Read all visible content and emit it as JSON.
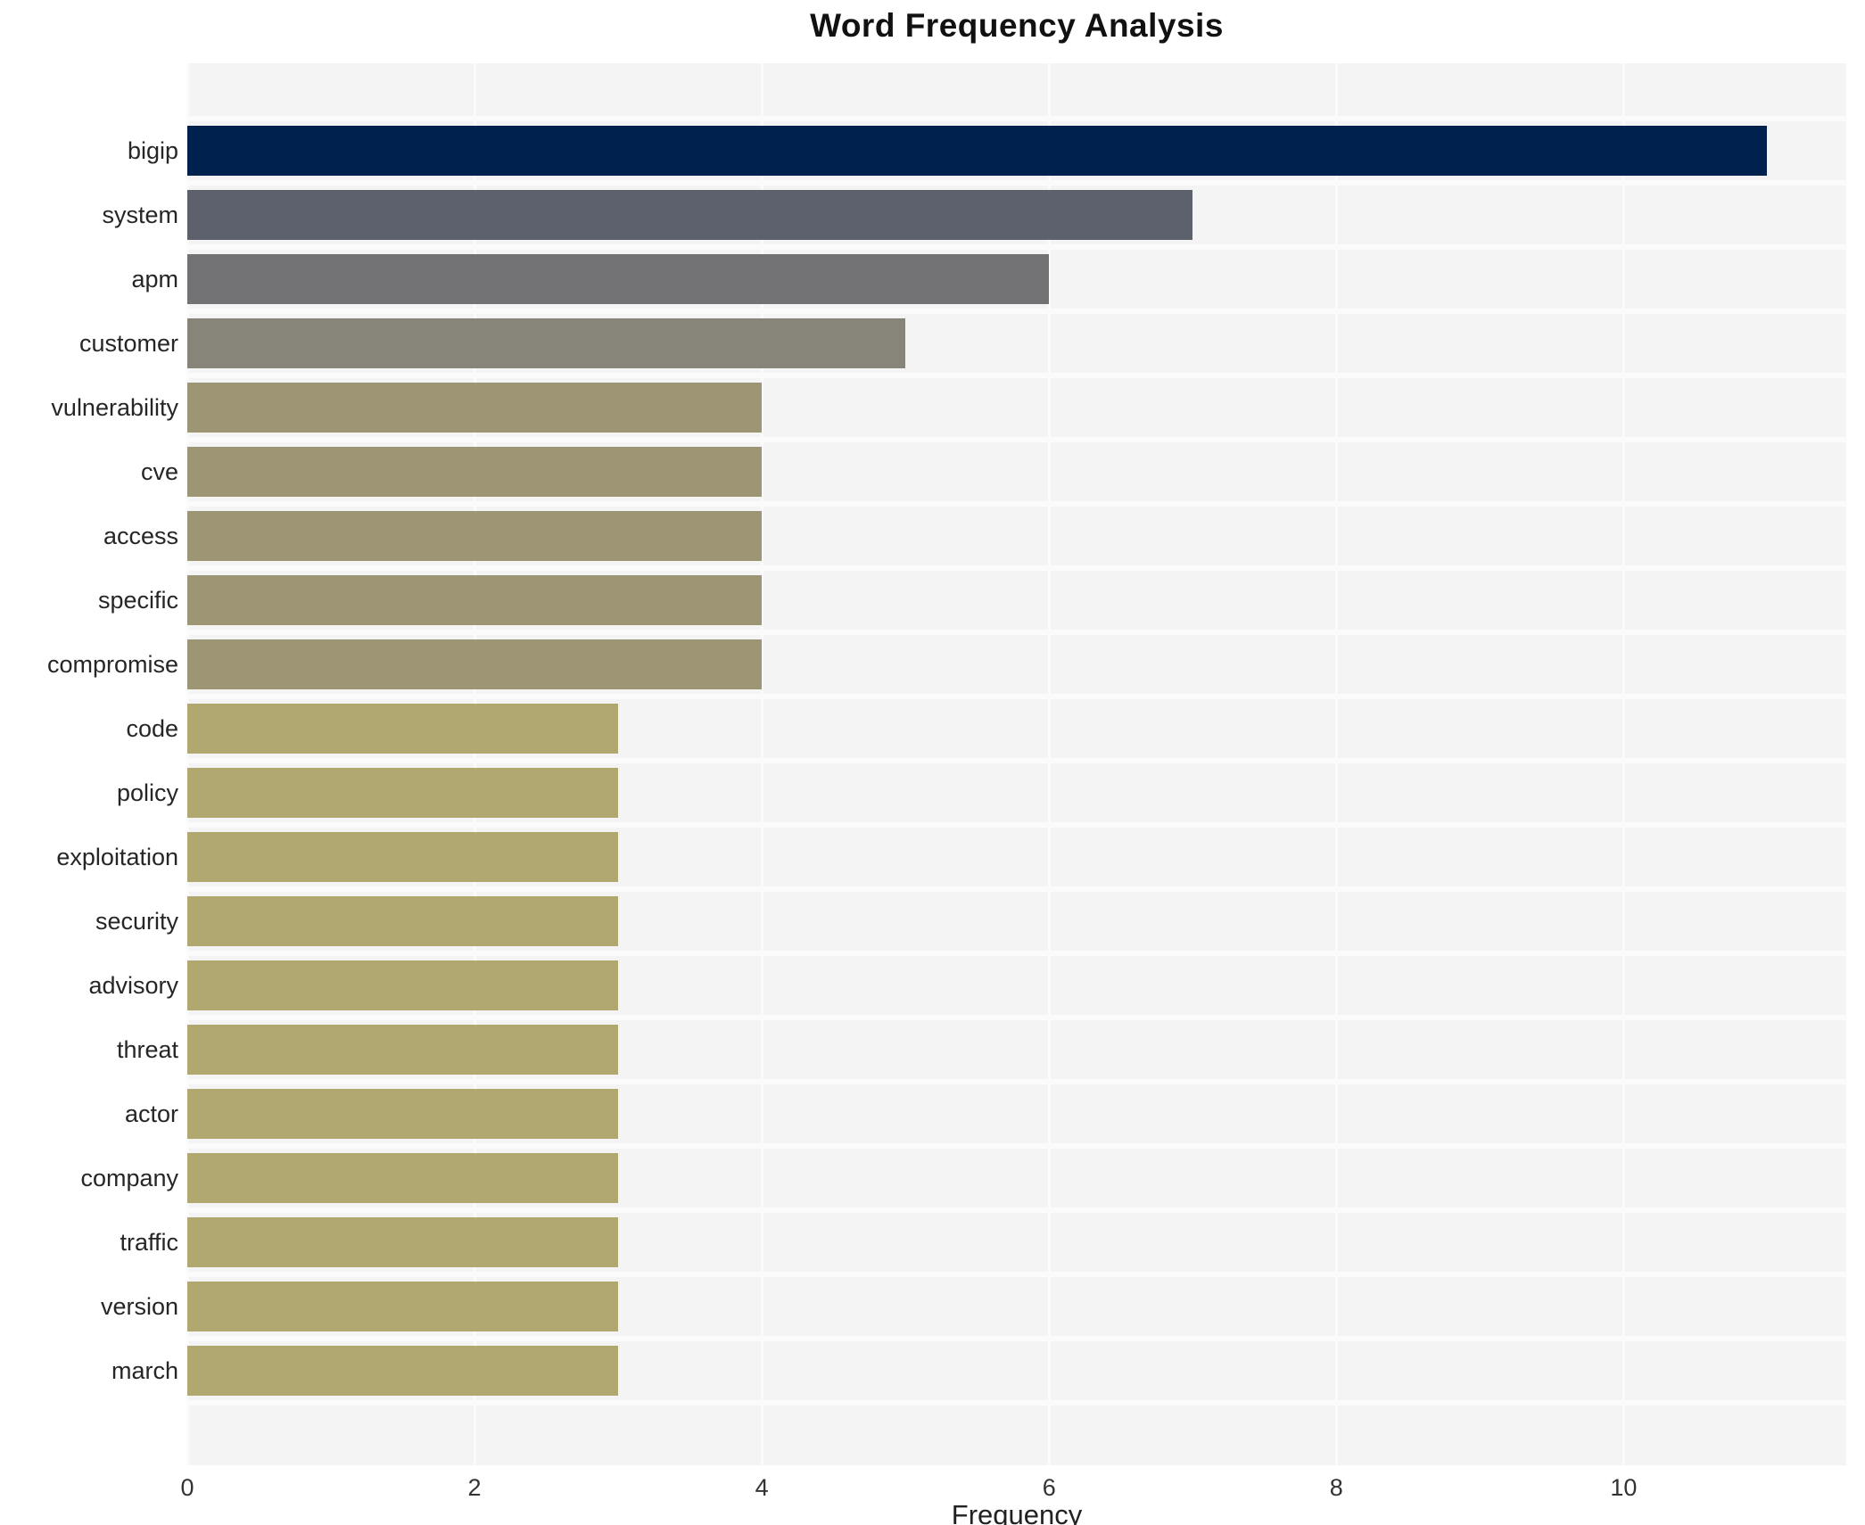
{
  "chart_data": {
    "type": "bar",
    "orientation": "horizontal",
    "title": "Word Frequency Analysis",
    "xlabel": "Frequency",
    "ylabel": "",
    "categories": [
      "bigip",
      "system",
      "apm",
      "customer",
      "vulnerability",
      "cve",
      "access",
      "specific",
      "compromise",
      "code",
      "policy",
      "exploitation",
      "security",
      "advisory",
      "threat",
      "actor",
      "company",
      "traffic",
      "version",
      "march"
    ],
    "values": [
      11,
      7,
      6,
      5,
      4,
      4,
      4,
      4,
      4,
      3,
      3,
      3,
      3,
      3,
      3,
      3,
      3,
      3,
      3,
      3
    ],
    "bar_colors": [
      "#00204d",
      "#5d606d",
      "#727275",
      "#87857a",
      "#9d9574",
      "#9d9574",
      "#9d9574",
      "#9d9574",
      "#9d9574",
      "#b1a771",
      "#b1a771",
      "#b1a771",
      "#b1a771",
      "#b1a771",
      "#b1a771",
      "#b1a771",
      "#b1a771",
      "#b1a771",
      "#b1a771",
      "#b1a771"
    ],
    "colormap_hint": "cividis reversed (dark navy = highest frequency, khaki = lowest)",
    "xticks": [
      0,
      2,
      4,
      6,
      8,
      10
    ],
    "xlim": [
      0,
      11.55
    ],
    "grid": true,
    "legend": false,
    "plot_background": "#f5f4f4",
    "grid_color": "#fcfbfc",
    "figure_background": "#ffffff"
  }
}
